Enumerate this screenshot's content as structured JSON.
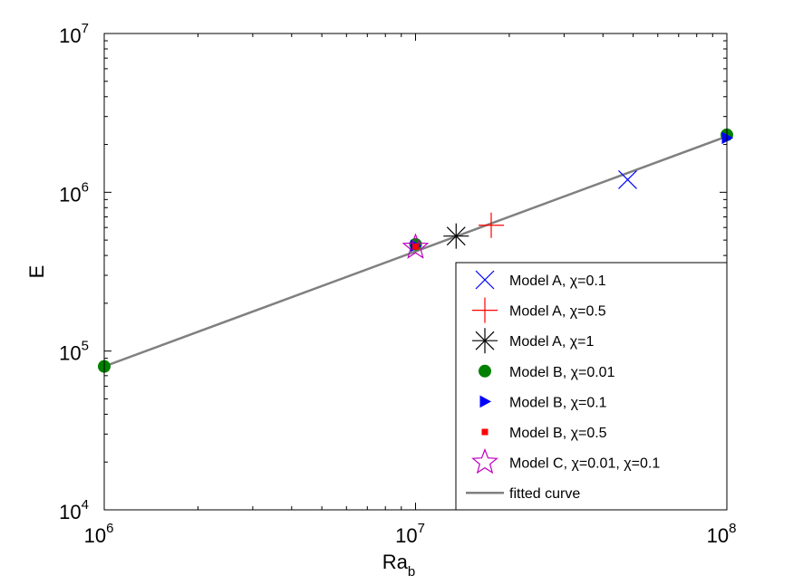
{
  "chart_data": {
    "type": "scatter",
    "xscale": "log",
    "yscale": "log",
    "xlim": [
      1000000,
      100000000
    ],
    "ylim": [
      10000,
      10000000
    ],
    "xlabel": "Ra",
    "xlabel_sub": "b",
    "ylabel": "E",
    "x_ticks": [
      {
        "base": "10",
        "exp": "6",
        "value": 1000000
      },
      {
        "base": "10",
        "exp": "7",
        "value": 10000000
      },
      {
        "base": "10",
        "exp": "8",
        "value": 100000000
      }
    ],
    "y_ticks": [
      {
        "base": "10",
        "exp": "4",
        "value": 10000
      },
      {
        "base": "10",
        "exp": "5",
        "value": 100000
      },
      {
        "base": "10",
        "exp": "6",
        "value": 1000000
      },
      {
        "base": "10",
        "exp": "7",
        "value": 10000000
      }
    ],
    "legend_position": "bottom-right",
    "series": [
      {
        "name": "Model A, χ=0.1",
        "marker": "x",
        "color": "#0000ff",
        "points": [
          [
            48000000,
            1200000
          ]
        ]
      },
      {
        "name": "Model A, χ=0.5",
        "marker": "plus",
        "color": "#ff0000",
        "points": [
          [
            17500000,
            620000
          ]
        ]
      },
      {
        "name": "Model A, χ=1",
        "marker": "asterisk",
        "color": "#000000",
        "points": [
          [
            13500000,
            530000
          ]
        ]
      },
      {
        "name": "Model B, χ=0.01",
        "marker": "circle",
        "color": "#008000",
        "points": [
          [
            1000000,
            80000
          ],
          [
            10000000,
            470000
          ],
          [
            100000000,
            2300000
          ]
        ]
      },
      {
        "name": "Model B, χ=0.1",
        "marker": "triangle-right",
        "color": "#0000ff",
        "points": [
          [
            10000000,
            460000
          ],
          [
            100000000,
            2200000
          ]
        ]
      },
      {
        "name": "Model B, χ=0.5",
        "marker": "square",
        "color": "#ff0000",
        "points": [
          [
            10000000,
            455000
          ]
        ]
      },
      {
        "name": "Model C, χ=0.01, χ=0.1",
        "marker": "star",
        "color": "#bf00bf",
        "points": [
          [
            10000000,
            450000
          ]
        ]
      }
    ],
    "fit": {
      "name": "fitted curve",
      "color": "#808080",
      "points": [
        [
          1000000,
          80000
        ],
        [
          100000000,
          2250000
        ]
      ]
    }
  }
}
